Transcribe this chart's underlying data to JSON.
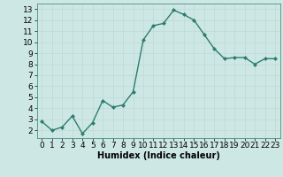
{
  "x": [
    0,
    1,
    2,
    3,
    4,
    5,
    6,
    7,
    8,
    9,
    10,
    11,
    12,
    13,
    14,
    15,
    16,
    17,
    18,
    19,
    20,
    21,
    22,
    23
  ],
  "y": [
    2.8,
    2.0,
    2.3,
    3.3,
    1.7,
    2.7,
    4.7,
    4.1,
    4.3,
    5.5,
    10.2,
    11.5,
    11.7,
    12.9,
    12.5,
    12.0,
    10.7,
    9.4,
    8.5,
    8.6,
    8.6,
    8.0,
    8.5,
    8.5
  ],
  "line_color": "#2d7d6e",
  "marker": "D",
  "marker_size": 2,
  "linewidth": 1.0,
  "xlabel": "Humidex (Indice chaleur)",
  "xlim": [
    -0.5,
    23.5
  ],
  "ylim": [
    1.3,
    13.5
  ],
  "yticks": [
    2,
    3,
    4,
    5,
    6,
    7,
    8,
    9,
    10,
    11,
    12,
    13
  ],
  "xticks": [
    0,
    1,
    2,
    3,
    4,
    5,
    6,
    7,
    8,
    9,
    10,
    11,
    12,
    13,
    14,
    15,
    16,
    17,
    18,
    19,
    20,
    21,
    22,
    23
  ],
  "background_color": "#cde8e4",
  "grid_color": "#c0d8d4",
  "xlabel_fontsize": 7,
  "tick_fontsize": 6.5
}
